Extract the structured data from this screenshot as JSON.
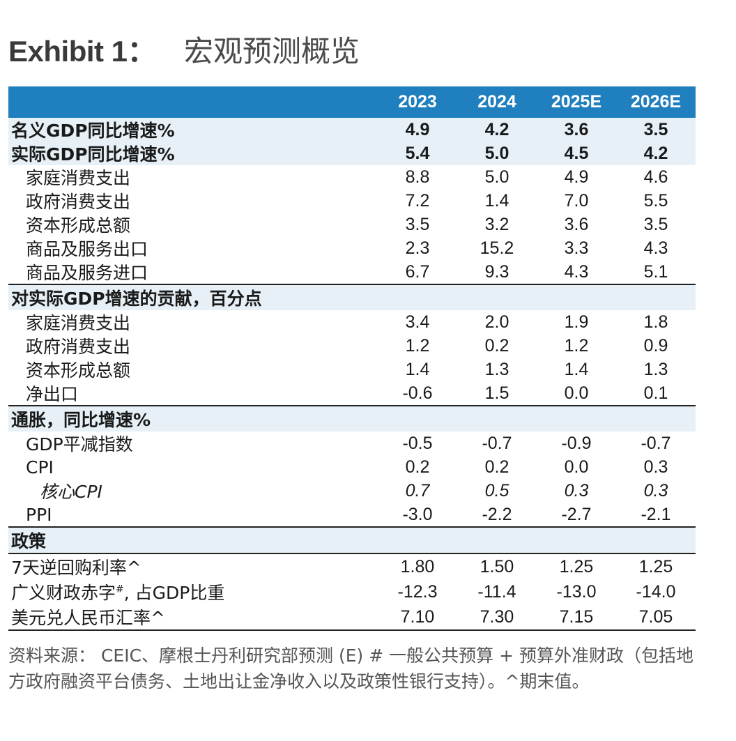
{
  "title": {
    "exhibit": "Exhibit 1：",
    "text": "宏观预测概览"
  },
  "columns": [
    "2023",
    "2024",
    "2025E",
    "2026E"
  ],
  "rows_top": [
    {
      "label": "名义GDP同比增速%",
      "values": [
        "4.9",
        "4.2",
        "3.6",
        "3.5"
      ]
    },
    {
      "label": "实际GDP同比增速%",
      "values": [
        "5.4",
        "5.0",
        "4.5",
        "4.2"
      ]
    }
  ],
  "rows_gdp_components": [
    {
      "label": "家庭消费支出",
      "values": [
        "8.8",
        "5.0",
        "4.9",
        "4.6"
      ]
    },
    {
      "label": "政府消费支出",
      "values": [
        "7.2",
        "1.4",
        "7.0",
        "5.5"
      ]
    },
    {
      "label": "资本形成总额",
      "values": [
        "3.5",
        "3.2",
        "3.6",
        "3.5"
      ]
    },
    {
      "label": "商品及服务出口",
      "values": [
        "2.3",
        "15.2",
        "3.3",
        "4.3"
      ]
    },
    {
      "label": "商品及服务进口",
      "values": [
        "6.7",
        "9.3",
        "4.3",
        "5.1"
      ]
    }
  ],
  "section_contrib": "对实际GDP增速的贡献，百分点",
  "rows_contrib": [
    {
      "label": "家庭消费支出",
      "values": [
        "3.4",
        "2.0",
        "1.9",
        "1.8"
      ]
    },
    {
      "label": "政府消费支出",
      "values": [
        "1.2",
        "0.2",
        "1.2",
        "0.9"
      ]
    },
    {
      "label": "资本形成总额",
      "values": [
        "1.4",
        "1.3",
        "1.4",
        "1.3"
      ]
    },
    {
      "label": "净出口",
      "values": [
        "-0.6",
        "1.5",
        "0.0",
        "0.1"
      ]
    }
  ],
  "section_inflation": "通胀，同比增速%",
  "rows_inflation": [
    {
      "label": "GDP平减指数",
      "values": [
        "-0.5",
        "-0.7",
        "-0.9",
        "-0.7"
      ]
    },
    {
      "label": "CPI",
      "values": [
        "0.2",
        "0.2",
        "0.0",
        "0.3"
      ]
    },
    {
      "label": "核心CPI",
      "values": [
        "0.7",
        "0.5",
        "0.3",
        "0.3"
      ]
    },
    {
      "label": "PPI",
      "values": [
        "-3.0",
        "-2.2",
        "-2.7",
        "-2.1"
      ]
    }
  ],
  "section_policy": "政策",
  "rows_policy": [
    {
      "label": "7天逆回购利率^",
      "values": [
        "1.80",
        "1.50",
        "1.25",
        "1.25"
      ]
    },
    {
      "label": "广义财政赤字",
      "sup": "#",
      "label_tail": ", 占GDP比重",
      "values": [
        "-12.3",
        "-11.4",
        "-13.0",
        "-14.0"
      ]
    },
    {
      "label": "美元兑人民币汇率^",
      "values": [
        "7.10",
        "7.30",
        "7.15",
        "7.05"
      ]
    }
  ],
  "source": "资料来源： CEIC、摩根士丹利研究部预测 (E) # 一般公共预算 + 预算外准财政（包括地方政府融资平台债务、土地出让金净收入以及政策性银行支持）。^期末值。"
}
